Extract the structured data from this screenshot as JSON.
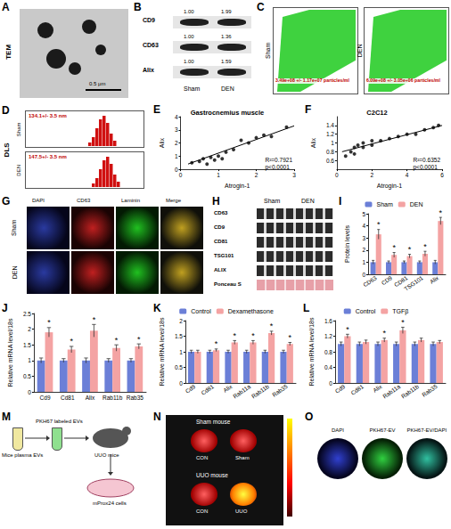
{
  "chart_data": [
    {
      "panel": "E",
      "type": "scatter",
      "title": "Gastrocnemius muscle",
      "x_label": "Atrogin-1",
      "y_label": "Alix",
      "x": [
        0.3,
        0.5,
        0.6,
        0.7,
        0.8,
        0.9,
        1.0,
        1.1,
        1.2,
        1.4,
        1.6,
        1.8,
        2.0,
        2.2,
        2.4,
        2.8
      ],
      "values": [
        0.5,
        0.6,
        0.8,
        0.4,
        0.9,
        0.7,
        1.0,
        0.8,
        1.3,
        1.5,
        2.2,
        2.0,
        2.4,
        2.6,
        2.5,
        3.2
      ],
      "fit": {
        "x": [
          0.2,
          3.0
        ],
        "y": [
          0.4,
          3.3
        ]
      },
      "annotation": [
        "R²=0.7921",
        "p<0.0001"
      ],
      "xlim": [
        0,
        3
      ],
      "xticks": [
        0,
        1,
        2,
        3
      ],
      "ylim": [
        0,
        4
      ],
      "yticks": [
        0,
        1,
        2,
        3,
        4
      ],
      "marker": "circle",
      "color": "#000000",
      "grid": false
    },
    {
      "panel": "F",
      "type": "scatter",
      "title": "C2C12",
      "x_label": "Atrogin-1",
      "y_label": "Alix",
      "x": [
        0.5,
        0.8,
        1.0,
        1.0,
        1.2,
        1.5,
        1.5,
        2.0,
        2.0,
        2.5,
        3.0,
        3.5,
        4.0,
        4.5,
        5.0,
        5.5,
        5.8
      ],
      "values": [
        0.7,
        0.8,
        0.9,
        0.75,
        0.95,
        0.9,
        1.0,
        0.95,
        1.05,
        1.05,
        1.1,
        1.15,
        1.2,
        1.2,
        1.3,
        1.35,
        1.4
      ],
      "fit": {
        "x": [
          0.3,
          6.0
        ],
        "y": [
          0.8,
          1.4
        ]
      },
      "annotation": [
        "R²=0.6352",
        "p<0.0001"
      ],
      "xlim": [
        0,
        6
      ],
      "xticks": [
        0,
        2,
        4,
        6
      ],
      "ylim": [
        0.4,
        1.6
      ],
      "yticks": [
        0.6,
        0.8,
        1.0,
        1.2,
        1.4
      ],
      "marker": "circle",
      "color": "#000000",
      "grid": false
    },
    {
      "panel": "I",
      "type": "bar",
      "y_label": "Protein levels",
      "categories": [
        "CD63",
        "CD9",
        "CD81",
        "TSG101",
        "Alix"
      ],
      "series": [
        {
          "name": "Sham",
          "color": "#6b7fd7",
          "values": [
            1,
            1,
            1,
            1,
            1
          ],
          "errors": [
            0.15,
            0.1,
            0.1,
            0.1,
            0.15
          ],
          "significance": [
            null,
            null,
            null,
            null,
            null
          ]
        },
        {
          "name": "DEN",
          "color": "#f4a3a3",
          "values": [
            3.3,
            1.6,
            1.5,
            1.7,
            4.4
          ],
          "errors": [
            0.4,
            0.2,
            0.15,
            0.2,
            0.3
          ],
          "significance": [
            "*",
            "*",
            "*",
            "*",
            "*"
          ]
        }
      ],
      "ylim": [
        0,
        5
      ],
      "yticks": [
        0,
        1,
        2,
        3,
        4,
        5
      ],
      "legend": "top",
      "grid": false
    },
    {
      "panel": "J",
      "type": "bar",
      "y_label": "Relative mRNA level/18s",
      "categories": [
        "Cd9",
        "Cd81",
        "Alix",
        "Rab11b",
        "Rab35"
      ],
      "series": [
        {
          "color": "#6b7fd7",
          "values": [
            1,
            1,
            1,
            1,
            1
          ],
          "errors": [
            0.08,
            0.06,
            0.08,
            0.06,
            0.06
          ],
          "significance": [
            null,
            null,
            null,
            null,
            null
          ]
        },
        {
          "color": "#f4a3a3",
          "values": [
            1.9,
            1.35,
            1.95,
            1.4,
            1.45
          ],
          "errors": [
            0.15,
            0.1,
            0.2,
            0.1,
            0.08
          ],
          "significance": [
            "*",
            "*",
            "*",
            "*",
            "*"
          ]
        }
      ],
      "ylim": [
        0,
        2.5
      ],
      "yticks": [
        0,
        0.5,
        1,
        1.5,
        2,
        2.5
      ],
      "grid": false
    },
    {
      "panel": "K",
      "type": "bar",
      "y_label": "Relative mRNA level/18s",
      "categories": [
        "Cd9",
        "Cd81",
        "Alix",
        "Rab11a",
        "Rab11b",
        "Rab35"
      ],
      "series": [
        {
          "name": "Control",
          "color": "#6b7fd7",
          "values": [
            1,
            1,
            1,
            1,
            1,
            1
          ],
          "errors": [
            0.05,
            0.05,
            0.05,
            0.05,
            0.05,
            0.05
          ],
          "significance": [
            null,
            null,
            null,
            null,
            null,
            null
          ]
        },
        {
          "name": "Dexamethasone",
          "color": "#f4a3a3",
          "values": [
            1.0,
            1.05,
            1.3,
            1.3,
            1.6,
            1.25
          ],
          "errors": [
            0.05,
            0.04,
            0.06,
            0.06,
            0.06,
            0.05
          ],
          "significance": [
            null,
            "*",
            "*",
            "*",
            "*",
            "*"
          ]
        }
      ],
      "ylim": [
        0,
        2
      ],
      "yticks": [
        0,
        0.5,
        1,
        1.5,
        2
      ],
      "legend": "top",
      "grid": false
    },
    {
      "panel": "L",
      "type": "bar",
      "y_label": "Relative mRNA level/18s",
      "categories": [
        "Cd9",
        "Cd81",
        "Alix",
        "Rab11a",
        "Rab11b",
        "Rab35"
      ],
      "series": [
        {
          "name": "Control",
          "color": "#6b7fd7",
          "values": [
            1,
            1,
            1,
            1,
            1,
            1
          ],
          "errors": [
            0.05,
            0.05,
            0.05,
            0.05,
            0.05,
            0.05
          ],
          "significance": [
            null,
            null,
            null,
            null,
            null,
            null
          ]
        },
        {
          "name": "TGFβ",
          "color": "#f4a3a3",
          "values": [
            1.2,
            1.05,
            1.1,
            1.35,
            1.1,
            1.05
          ],
          "errors": [
            0.05,
            0.05,
            0.05,
            0.08,
            0.05,
            0.04
          ],
          "significance": [
            "*",
            null,
            "*",
            "*",
            null,
            null
          ]
        }
      ],
      "ylim": [
        0,
        1.6
      ],
      "yticks": [
        0,
        0.4,
        0.8,
        1.2,
        1.6
      ],
      "legend": "top",
      "grid": false
    }
  ],
  "images": {
    "A": {
      "panel": "A",
      "side_label": "TEM",
      "scale_bar": "0.5 μm"
    },
    "B": {
      "panel": "B",
      "lanes": [
        "Sham",
        "DEN"
      ],
      "rows": [
        {
          "name": "CD9",
          "values": [
            "1.00",
            "1.99"
          ]
        },
        {
          "name": "CD63",
          "values": [
            "1.00",
            "1.36"
          ]
        },
        {
          "name": "Alix",
          "values": [
            "1.00",
            "1.59"
          ]
        }
      ]
    },
    "C": {
      "panel": "C",
      "plots": [
        {
          "name": "Sham",
          "text": "3.49e+08 +/- 1.17e+07 particles/ml"
        },
        {
          "name": "DEN",
          "text": "6.09e+08 +/- 3.05e+06 particles/ml"
        }
      ]
    },
    "D": {
      "panel": "D",
      "side_label": "DLS",
      "plots": [
        {
          "name": "Sham",
          "text": "134.1+/- 3.5 nm"
        },
        {
          "name": "DEN",
          "text": "147.5+/- 3.5 nm"
        }
      ]
    },
    "G": {
      "panel": "G",
      "columns": [
        "DAPI",
        "CD63",
        "Laminin",
        "Merge"
      ],
      "rows": [
        "Sham",
        "DEN"
      ]
    },
    "H": {
      "panel": "H",
      "lanes": [
        "Sham",
        "DEN"
      ],
      "rows": [
        "CD63",
        "CD9",
        "CD81",
        "TSG101",
        "ALIX",
        "Ponceau S"
      ]
    },
    "M": {
      "panel": "M",
      "labels": [
        "Mice plasma EVs",
        "PKH67 labeled EVs",
        "UUO mice",
        "mProx24 cells"
      ]
    },
    "N": {
      "panel": "N",
      "rows": [
        {
          "name": "Sham mouse",
          "lanes": [
            "CON",
            "Sham"
          ]
        },
        {
          "name": "UUO mouse",
          "lanes": [
            "CON",
            "UUO"
          ]
        }
      ]
    },
    "O": {
      "panel": "O",
      "columns": [
        "DAPI",
        "PKH67-EV",
        "PKH67-EV/DAPI"
      ]
    }
  }
}
